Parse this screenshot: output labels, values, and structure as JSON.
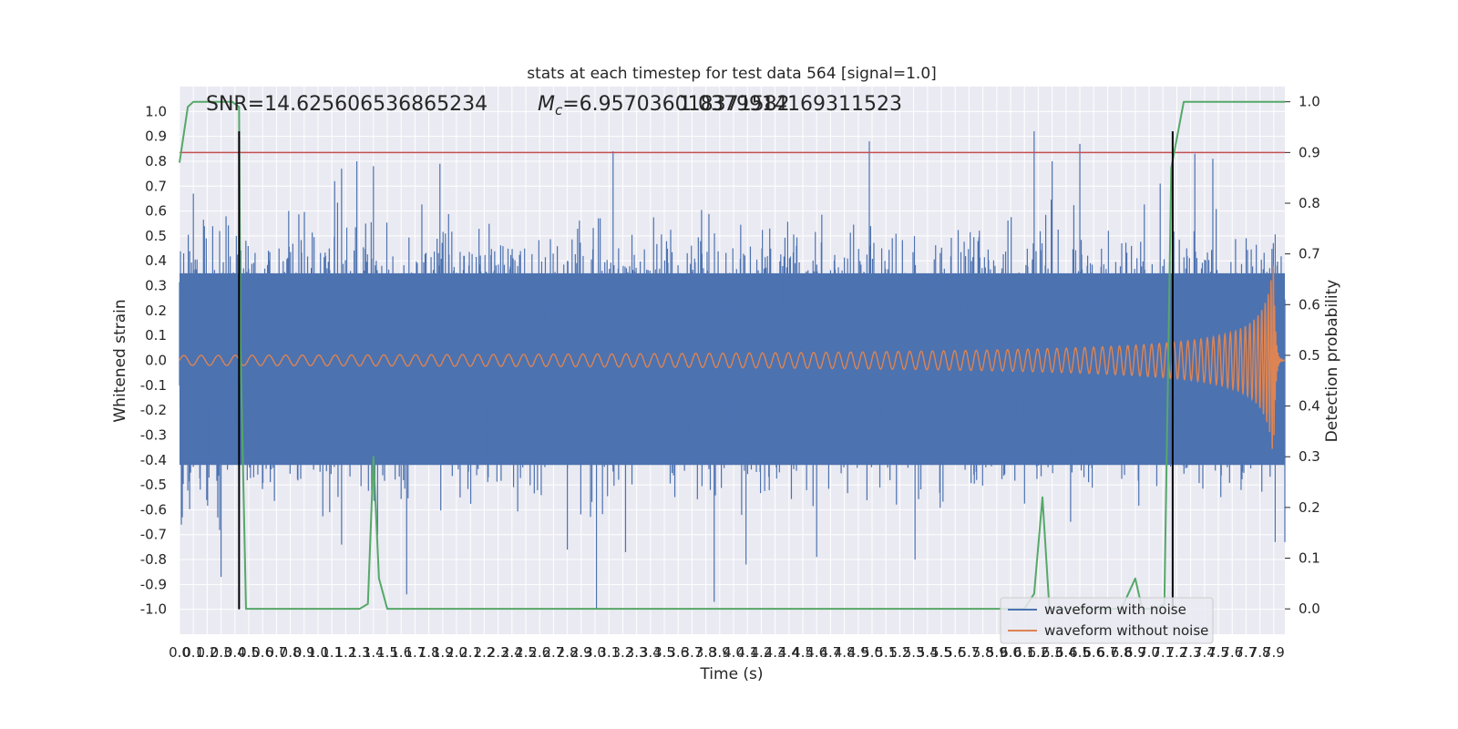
{
  "chart_data": {
    "type": "line",
    "title": "stats at each timestep for test data 564 [signal=1.0]",
    "xlabel": "Time (s)",
    "ylabel": "Whitened strain",
    "y2label": "Detection probability",
    "xlim": [
      0.0,
      7.98
    ],
    "ylim": [
      -1.1,
      1.1
    ],
    "y2lim": [
      -0.05,
      1.03
    ],
    "x_ticks": [
      "0.0",
      "0.1",
      "0.2",
      "0.3",
      "0.4",
      "0.5",
      "0.6",
      "0.7",
      "0.8",
      "0.9",
      "1.0",
      "1.1",
      "1.2",
      "1.3",
      "1.4",
      "1.5",
      "1.6",
      "1.7",
      "1.8",
      "1.9",
      "2.0",
      "2.1",
      "2.2",
      "2.3",
      "2.4",
      "2.5",
      "2.6",
      "2.7",
      "2.8",
      "2.9",
      "3.0",
      "3.1",
      "3.2",
      "3.3",
      "3.4",
      "3.5",
      "3.6",
      "3.7",
      "3.8",
      "3.9",
      "4.0",
      "4.1",
      "4.2",
      "4.3",
      "4.4",
      "4.5",
      "4.6",
      "4.7",
      "4.8",
      "4.9",
      "5.0",
      "5.1",
      "5.2",
      "5.3",
      "5.4",
      "5.5",
      "5.6",
      "5.7",
      "5.8",
      "5.9",
      "6.0",
      "6.1",
      "6.2",
      "6.3",
      "6.4",
      "6.5",
      "6.6",
      "6.7",
      "6.8",
      "6.9",
      "7.0",
      "7.1",
      "7.2",
      "7.3",
      "7.4",
      "7.5",
      "7.6",
      "7.7",
      "7.8",
      "7.9"
    ],
    "y_ticks": [
      "1.0",
      "0.9",
      "0.8",
      "0.7",
      "0.6",
      "0.5",
      "0.4",
      "0.3",
      "0.2",
      "0.1",
      "0.0",
      "-0.1",
      "-0.2",
      "-0.3",
      "-0.4",
      "-0.5",
      "-0.6",
      "-0.7",
      "-0.8",
      "-0.9",
      "-1.0"
    ],
    "y2_ticks": [
      "1.0",
      "0.9",
      "0.8",
      "0.7",
      "0.6",
      "0.5",
      "0.4",
      "0.3",
      "0.2",
      "0.1",
      "0.0"
    ],
    "annotations": {
      "snr": "SNR=14.625606536865234",
      "mc_symbol": "M",
      "mc_subscript": "c",
      "mc_value": "=6.957036018371582",
      "overlap_value": "1.0379914169311523"
    },
    "threshold": {
      "axis": "y2",
      "value": 0.9,
      "color": "#c44e52"
    },
    "vertical_markers": [
      0.43,
      7.17
    ],
    "series": [
      {
        "name": "waveform with noise",
        "color": "#4c72b0",
        "description": "noisy whitened strain, envelope roughly -0.5..0.5 with spikes up to 0.92 and down to -1.0",
        "peaks": [
          {
            "x": 0.03,
            "y": 0.43
          },
          {
            "x": 0.1,
            "y": 0.67
          },
          {
            "x": 0.29,
            "y": 0.52
          },
          {
            "x": 0.41,
            "y": 0.5
          },
          {
            "x": 0.43,
            "y": 0.72
          },
          {
            "x": 1.12,
            "y": 0.72
          },
          {
            "x": 1.17,
            "y": 0.77
          },
          {
            "x": 1.28,
            "y": 0.8
          },
          {
            "x": 1.4,
            "y": 0.78
          },
          {
            "x": 1.88,
            "y": 0.79
          },
          {
            "x": 3.13,
            "y": 0.84
          },
          {
            "x": 4.98,
            "y": 0.88
          },
          {
            "x": 6.17,
            "y": 0.92
          },
          {
            "x": 6.3,
            "y": 0.8
          },
          {
            "x": 6.5,
            "y": 0.87
          },
          {
            "x": 7.46,
            "y": 0.81
          },
          {
            "x": 7.08,
            "y": 0.71
          },
          {
            "x": 7.33,
            "y": 0.83
          }
        ],
        "troughs": [
          {
            "x": 0.02,
            "y": -0.63
          },
          {
            "x": 0.3,
            "y": -0.87
          },
          {
            "x": 1.17,
            "y": -0.74
          },
          {
            "x": 1.43,
            "y": -0.7
          },
          {
            "x": 1.64,
            "y": -0.94
          },
          {
            "x": 2.8,
            "y": -0.76
          },
          {
            "x": 3.01,
            "y": -1.0
          },
          {
            "x": 3.22,
            "y": -0.77
          },
          {
            "x": 3.86,
            "y": -0.97
          },
          {
            "x": 4.09,
            "y": -0.82
          },
          {
            "x": 4.6,
            "y": -0.79
          },
          {
            "x": 5.31,
            "y": -0.8
          },
          {
            "x": 7.91,
            "y": -0.73
          },
          {
            "x": 7.98,
            "y": -0.73
          }
        ]
      },
      {
        "name": "waveform without noise",
        "color": "#dd8452",
        "description": "chirp: amplitude ~0.02 growing to ~0.38 near 7.9 s, frequency increasing",
        "start_amplitude": 0.02,
        "peak_amplitude": 0.38,
        "peak_time": 7.9
      },
      {
        "name": "detection probability",
        "axis": "y2",
        "color": "#55a868",
        "points": [
          [
            0.0,
            0.88
          ],
          [
            0.06,
            0.99
          ],
          [
            0.1,
            1.0
          ],
          [
            0.38,
            1.0
          ],
          [
            0.43,
            0.99
          ],
          [
            0.44,
            0.52
          ],
          [
            0.48,
            0.0
          ],
          [
            0.52,
            0.0
          ],
          [
            1.3,
            0.0
          ],
          [
            1.36,
            0.01
          ],
          [
            1.4,
            0.3
          ],
          [
            1.44,
            0.06
          ],
          [
            1.5,
            0.0
          ],
          [
            6.1,
            0.0
          ],
          [
            6.17,
            0.03
          ],
          [
            6.23,
            0.22
          ],
          [
            6.28,
            0.0
          ],
          [
            6.8,
            0.0
          ],
          [
            6.9,
            0.06
          ],
          [
            6.95,
            0.0
          ],
          [
            7.05,
            0.0
          ],
          [
            7.11,
            0.01
          ],
          [
            7.16,
            0.87
          ],
          [
            7.25,
            1.0
          ],
          [
            7.98,
            1.0
          ]
        ]
      }
    ],
    "legend": {
      "location": "lower-right",
      "entries": [
        "waveform with noise",
        "waveform without noise"
      ]
    }
  }
}
